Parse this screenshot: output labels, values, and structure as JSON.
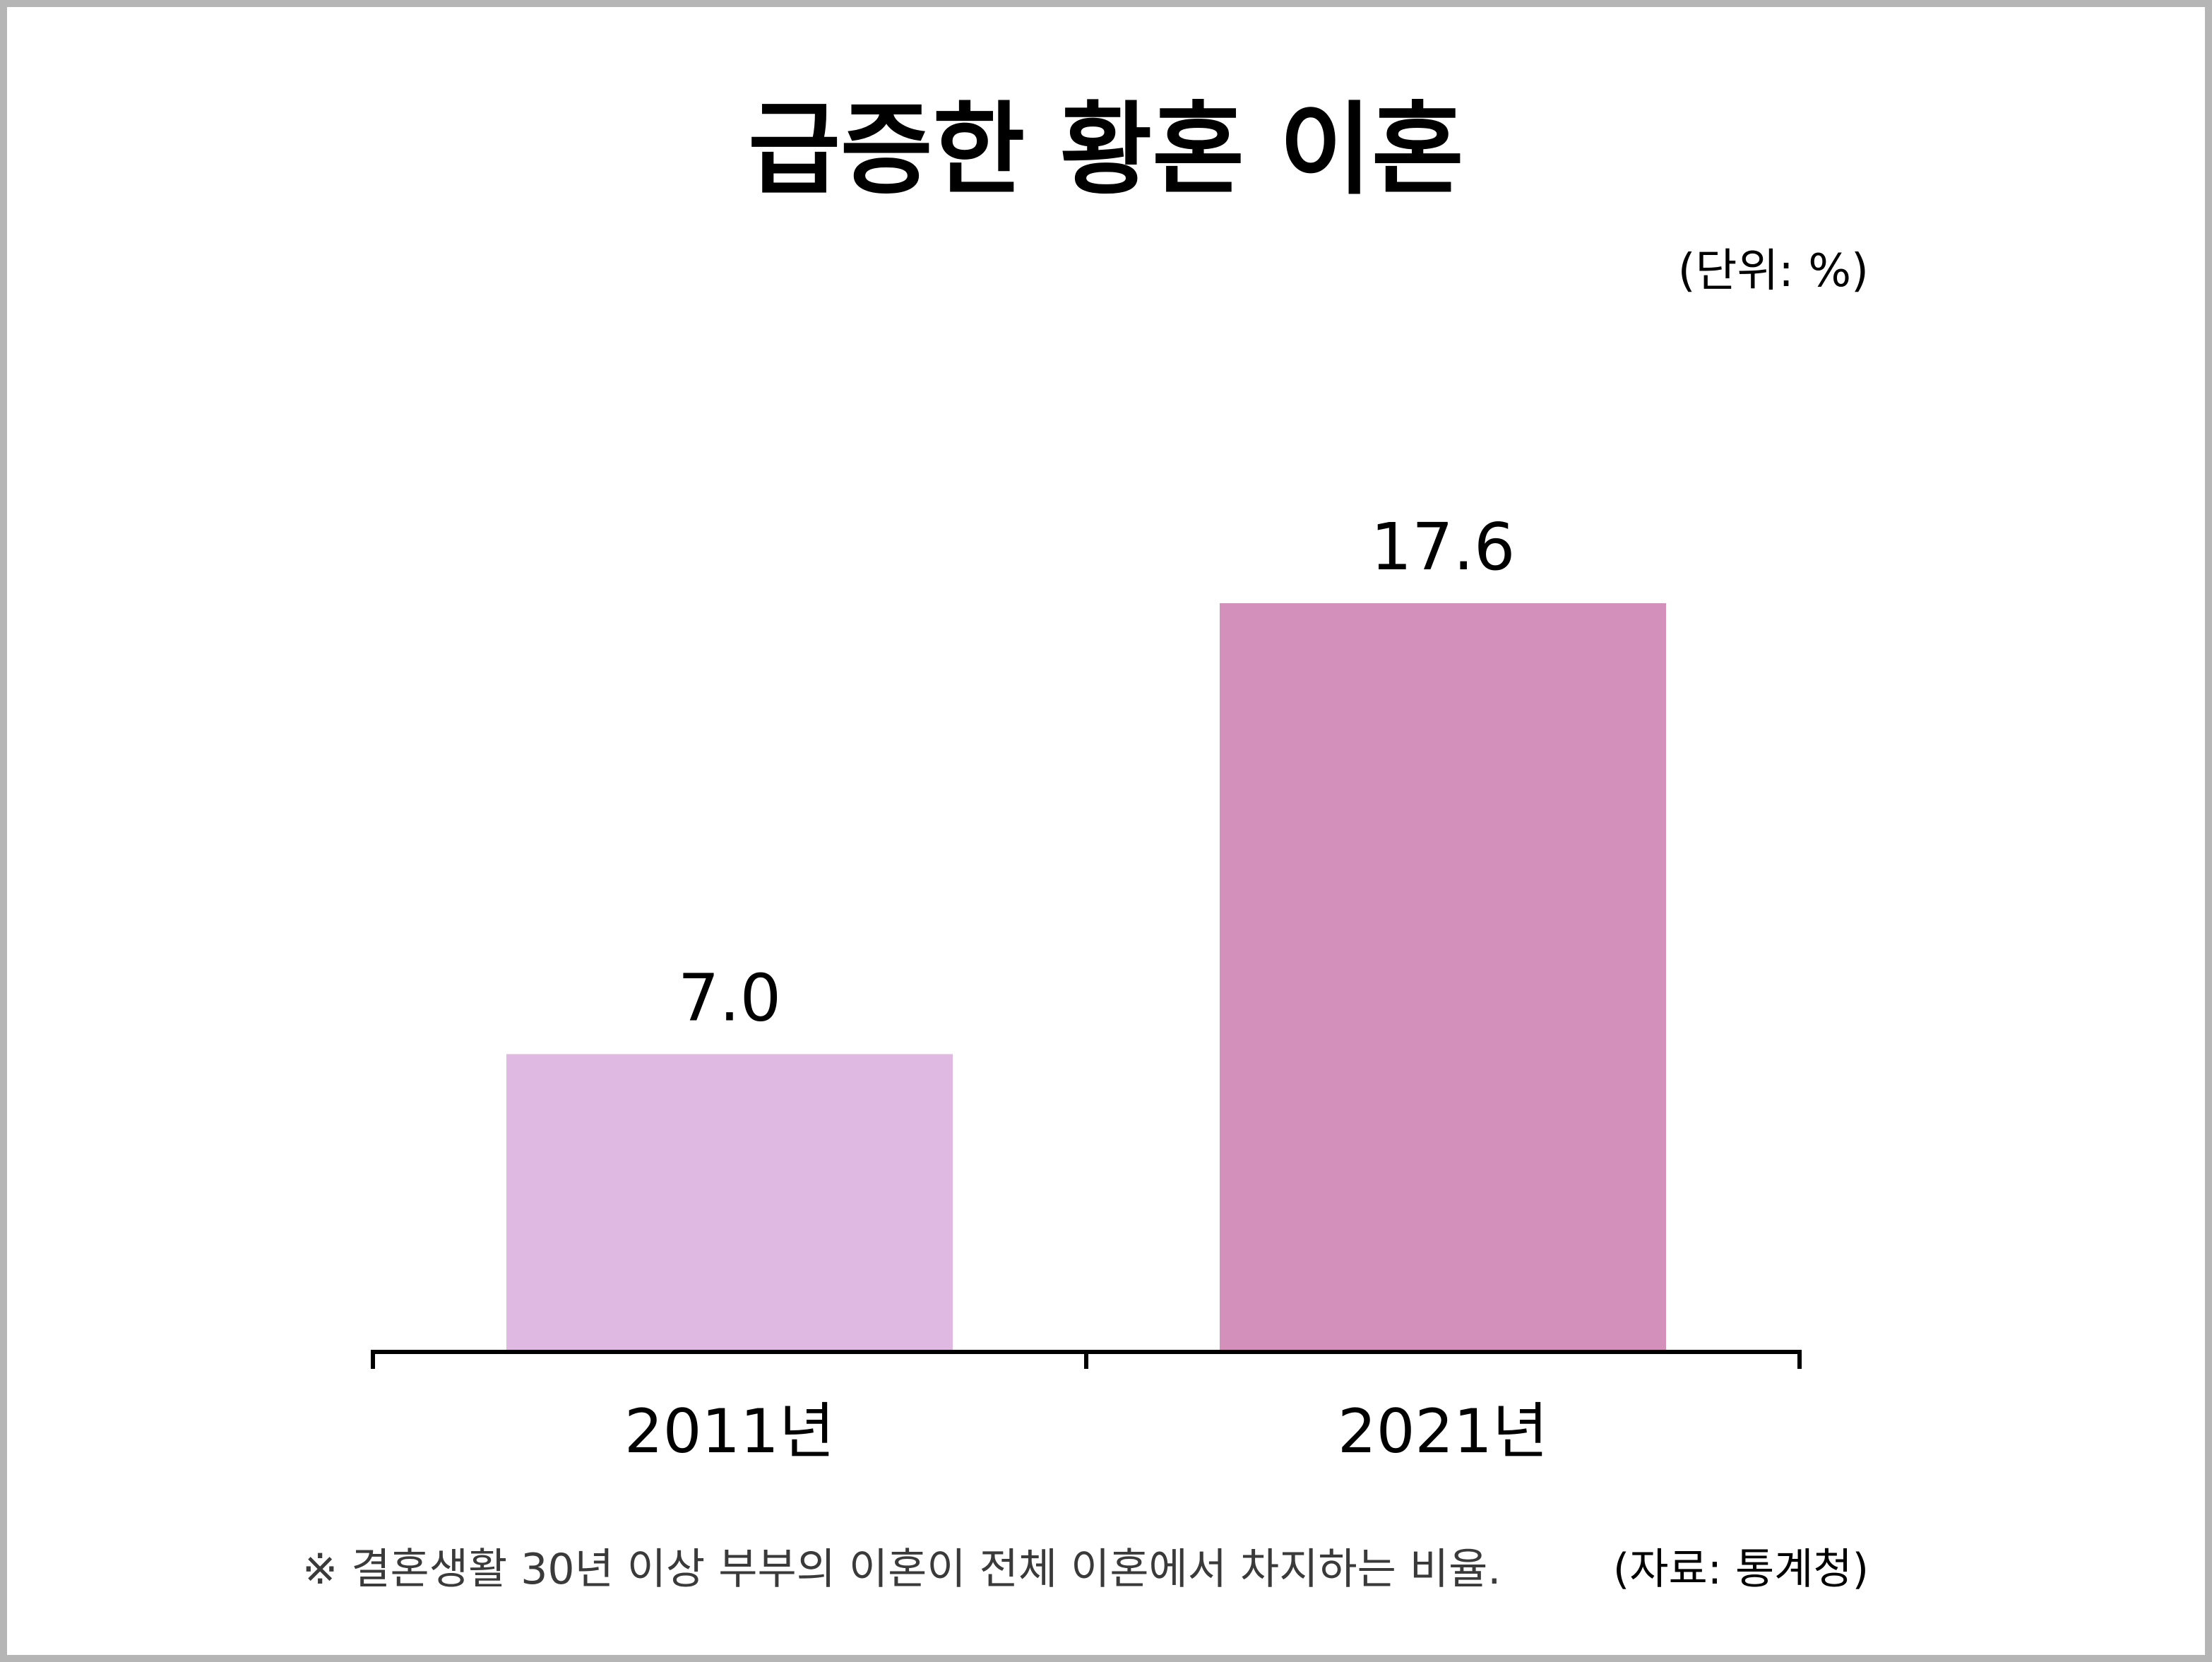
{
  "chart_data": {
    "type": "bar",
    "title": "급증한 황혼 이혼",
    "unit_label": "(단위: %)",
    "categories": [
      "2011년",
      "2021년"
    ],
    "values": [
      7.0,
      17.6
    ],
    "value_labels": [
      "7.0",
      "17.6"
    ],
    "bar_colors": [
      "#dfb9e2",
      "#d290bb"
    ],
    "ylim": [
      0,
      20
    ],
    "xlabel": "",
    "ylabel": "",
    "grid": false,
    "legend": "none"
  },
  "footnote": "※ 결혼생활 30년 이상 부부의 이혼이 전체 이혼에서 차지하는 비율.",
  "source": "(자료: 통계청)"
}
